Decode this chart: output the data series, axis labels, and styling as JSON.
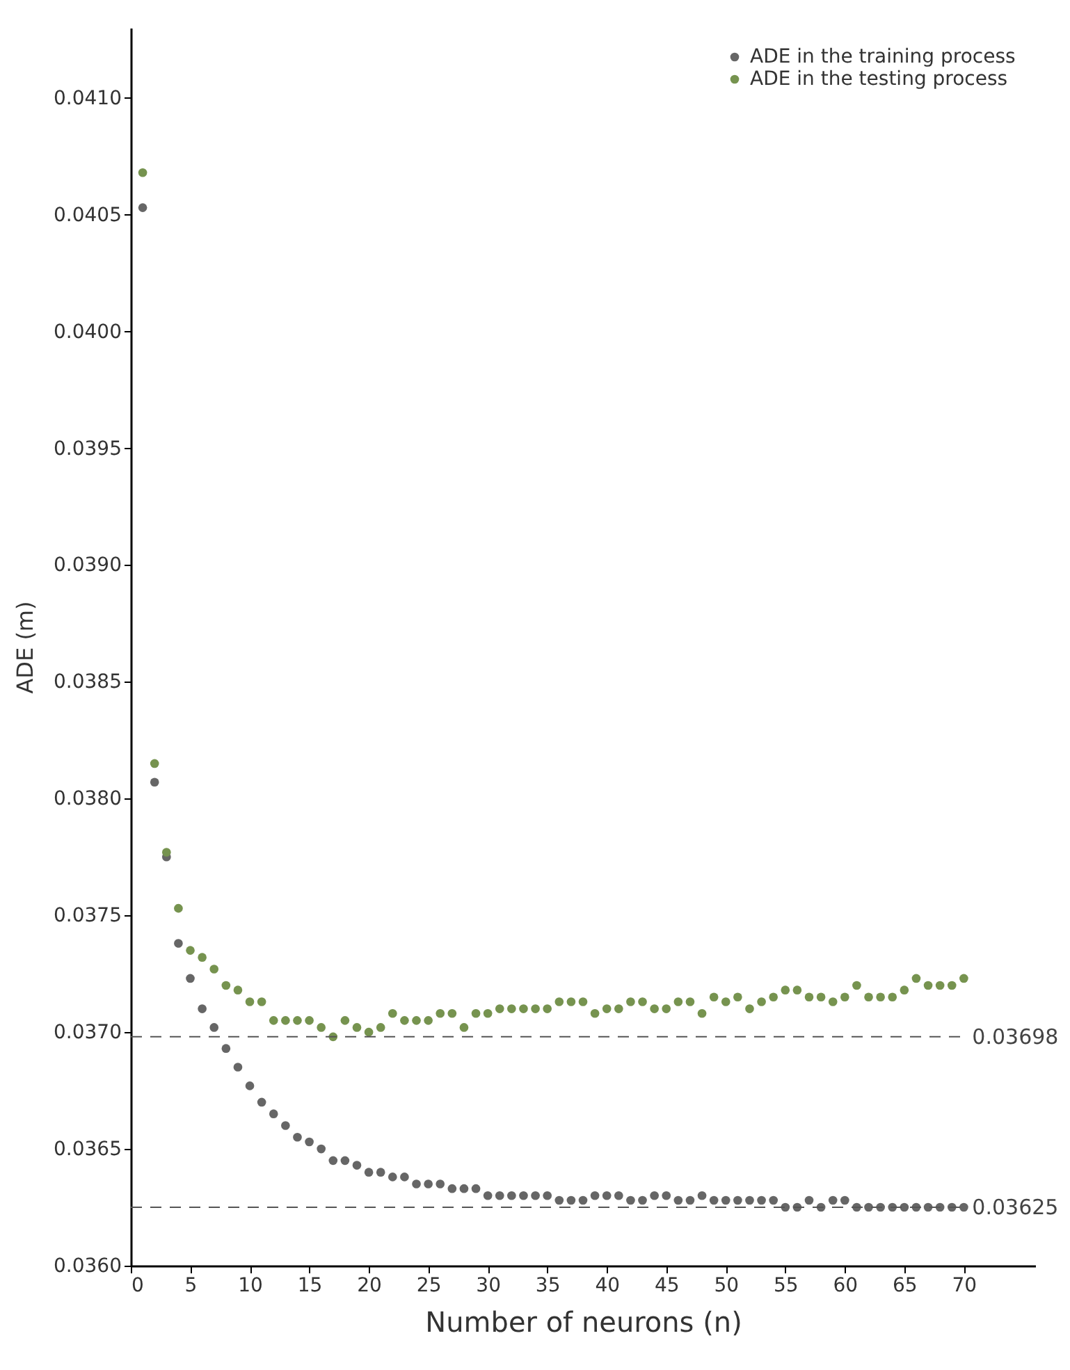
{
  "chart_data": {
    "type": "scatter",
    "xlabel": "Number of neurons (n)",
    "ylabel": "ADE (m)",
    "x": [
      1,
      2,
      3,
      4,
      5,
      6,
      7,
      8,
      9,
      10,
      11,
      12,
      13,
      14,
      15,
      16,
      17,
      18,
      19,
      20,
      21,
      22,
      23,
      24,
      25,
      26,
      27,
      28,
      29,
      30,
      31,
      32,
      33,
      34,
      35,
      36,
      37,
      38,
      39,
      40,
      41,
      42,
      43,
      44,
      45,
      46,
      47,
      48,
      49,
      50,
      51,
      52,
      53,
      54,
      55,
      56,
      57,
      58,
      59,
      60,
      61,
      62,
      63,
      64,
      65,
      66,
      67,
      68,
      69,
      70
    ],
    "series": [
      {
        "name": "ADE in the training process",
        "color": "#666666",
        "values": [
          0.04053,
          0.03807,
          0.03775,
          0.03738,
          0.03723,
          0.0371,
          0.03702,
          0.03693,
          0.03685,
          0.03677,
          0.0367,
          0.03665,
          0.0366,
          0.03655,
          0.03653,
          0.0365,
          0.03645,
          0.03645,
          0.03643,
          0.0364,
          0.0364,
          0.03638,
          0.03638,
          0.03635,
          0.03635,
          0.03635,
          0.03633,
          0.03633,
          0.03633,
          0.0363,
          0.0363,
          0.0363,
          0.0363,
          0.0363,
          0.0363,
          0.03628,
          0.03628,
          0.03628,
          0.0363,
          0.0363,
          0.0363,
          0.03628,
          0.03628,
          0.0363,
          0.0363,
          0.03628,
          0.03628,
          0.0363,
          0.03628,
          0.03628,
          0.03628,
          0.03628,
          0.03628,
          0.03628,
          0.03625,
          0.03625,
          0.03628,
          0.03625,
          0.03628,
          0.03628,
          0.03625,
          0.03625,
          0.03625,
          0.03625,
          0.03625,
          0.03625,
          0.03625,
          0.03625,
          0.03625,
          0.03625
        ]
      },
      {
        "name": "ADE in the testing process",
        "color": "#76934f",
        "values": [
          0.04068,
          0.03815,
          0.03777,
          0.03753,
          0.03735,
          0.03732,
          0.03727,
          0.0372,
          0.03718,
          0.03713,
          0.03713,
          0.03705,
          0.03705,
          0.03705,
          0.03705,
          0.03702,
          0.03698,
          0.03705,
          0.03702,
          0.037,
          0.03702,
          0.03708,
          0.03705,
          0.03705,
          0.03705,
          0.03708,
          0.03708,
          0.03702,
          0.03708,
          0.03708,
          0.0371,
          0.0371,
          0.0371,
          0.0371,
          0.0371,
          0.03713,
          0.03713,
          0.03713,
          0.03708,
          0.0371,
          0.0371,
          0.03713,
          0.03713,
          0.0371,
          0.0371,
          0.03713,
          0.03713,
          0.03708,
          0.03715,
          0.03713,
          0.03715,
          0.0371,
          0.03713,
          0.03715,
          0.03718,
          0.03718,
          0.03715,
          0.03715,
          0.03713,
          0.03715,
          0.0372,
          0.03715,
          0.03715,
          0.03715,
          0.03718,
          0.03723,
          0.0372,
          0.0372,
          0.0372,
          0.03723
        ]
      }
    ],
    "xlim": [
      0,
      76
    ],
    "xticks": [
      0,
      5,
      10,
      15,
      20,
      25,
      30,
      35,
      40,
      45,
      50,
      55,
      60,
      65,
      70
    ],
    "ylim": [
      0.036,
      0.0413
    ],
    "yticks": [
      {
        "value": 0.036,
        "label": "0.0360"
      },
      {
        "value": 0.0365,
        "label": "0.0365"
      },
      {
        "value": 0.037,
        "label": "0.0370"
      },
      {
        "value": 0.0375,
        "label": "0.0375"
      },
      {
        "value": 0.038,
        "label": "0.0380"
      },
      {
        "value": 0.0385,
        "label": "0.0385"
      },
      {
        "value": 0.039,
        "label": "0.0390"
      },
      {
        "value": 0.0395,
        "label": "0.0395"
      },
      {
        "value": 0.04,
        "label": "0.0400"
      },
      {
        "value": 0.0405,
        "label": "0.0405"
      },
      {
        "value": 0.041,
        "label": "0.0410"
      }
    ],
    "ref_lines": [
      {
        "axis": "y",
        "value": 0.03698,
        "label": "0.03698",
        "line_style": "dashed"
      },
      {
        "axis": "y",
        "value": 0.03625,
        "label": "0.03625",
        "line_style": "dashed"
      }
    ],
    "marker": "circle",
    "legend": "top right",
    "grid": false
  }
}
